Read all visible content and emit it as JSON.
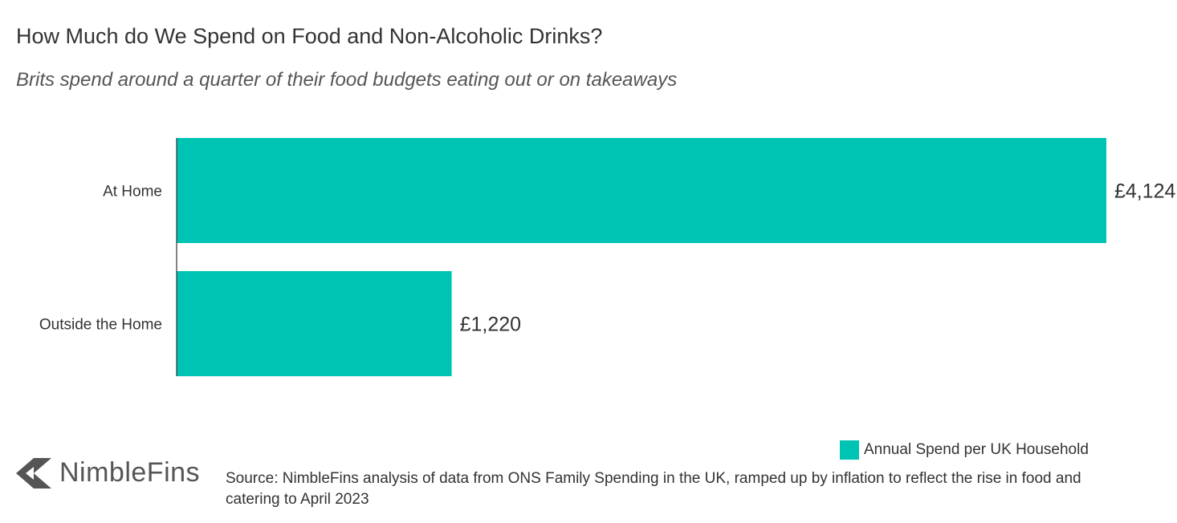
{
  "title": "How Much do We Spend on Food and Non-Alcoholic Drinks?",
  "subtitle": "Brits spend around a quarter of their food budgets eating out or on takeaways",
  "chart_data": {
    "type": "bar",
    "orientation": "horizontal",
    "categories": [
      "At Home",
      "Outside the Home"
    ],
    "series": [
      {
        "name": "Annual Spend per UK Household",
        "values": [
          4124,
          1220
        ],
        "color": "#00c4b3"
      }
    ],
    "data_labels": [
      "£4,124",
      "£1,220"
    ],
    "xlim": [
      0,
      4124
    ],
    "grid": false,
    "legend_position": "bottom-right"
  },
  "legend": {
    "label": "Annual Spend per UK Household",
    "color": "#00c4b3"
  },
  "brand": {
    "name": "NimbleFins",
    "icon": "nimblefins-logo-icon"
  },
  "source": "Source: NimbleFins analysis of data from ONS Family Spending in the UK, ramped up by inflation to reflect the rise in food and catering to April 2023"
}
